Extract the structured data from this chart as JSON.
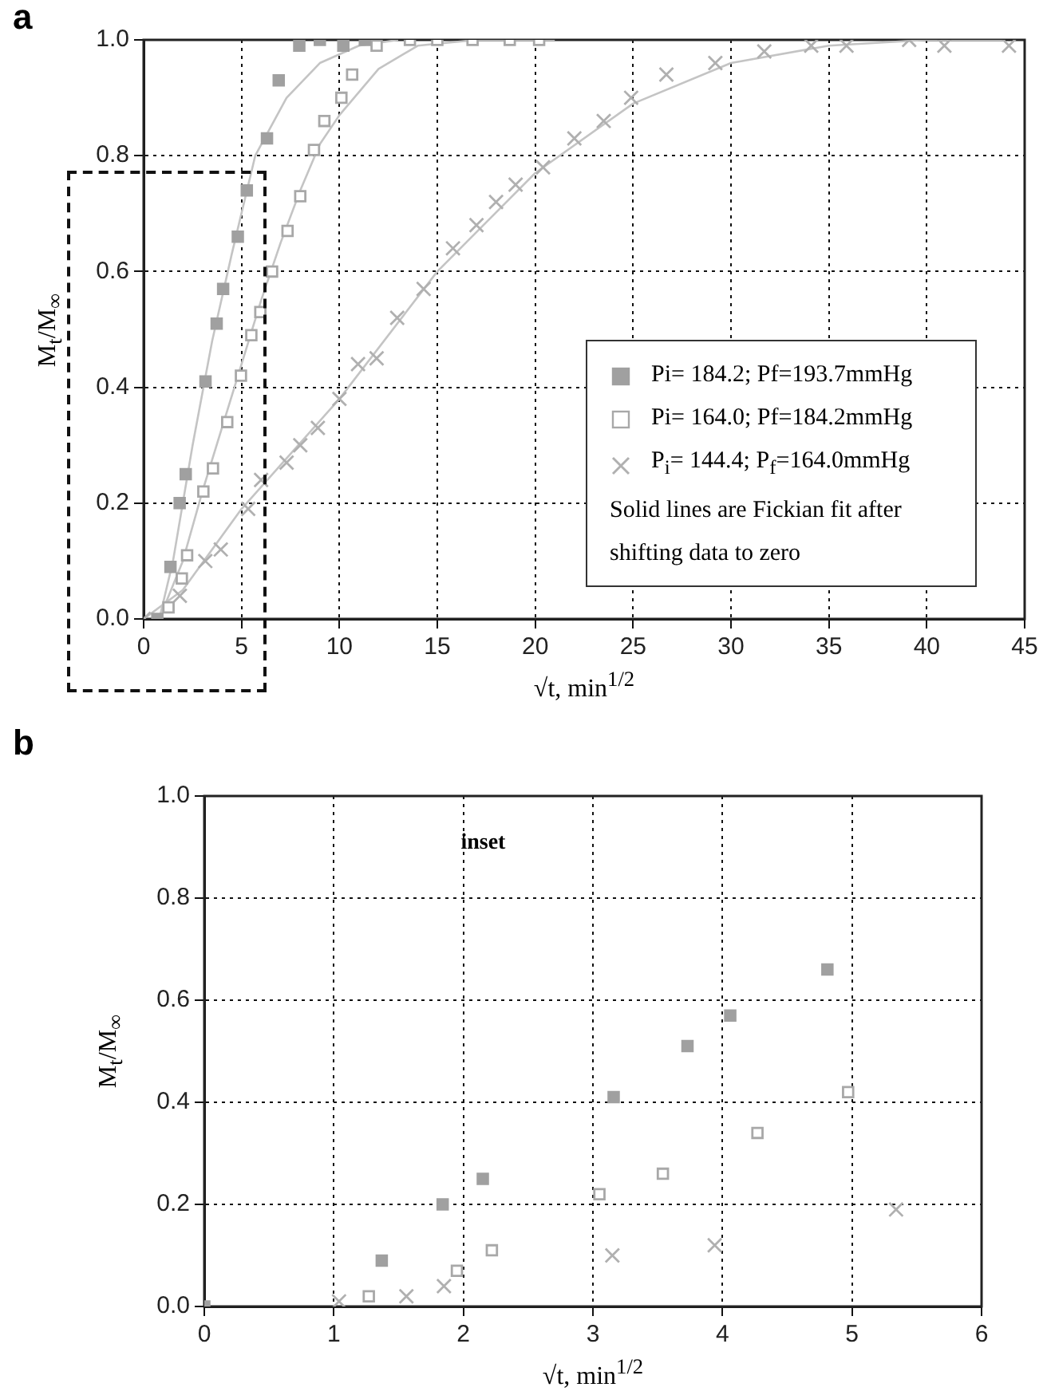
{
  "chart_data": [
    {
      "type": "scatter",
      "title": "a",
      "xlabel": "√t, min$^{1/2}$",
      "ylabel": "M$_{t}$/M$_{∞}$",
      "xlim": [
        0,
        45
      ],
      "xticks": [
        0,
        5,
        10,
        15,
        20,
        25,
        30,
        35,
        40,
        45
      ],
      "ylim": [
        0,
        1
      ],
      "yticks": [
        {
          "value": 0,
          "label": "0.0"
        },
        {
          "value": 0.2,
          "label": "0.2"
        },
        {
          "value": 0.4,
          "label": "0.4"
        },
        {
          "value": 0.6,
          "label": "0.6"
        },
        {
          "value": 0.8,
          "label": "0.8"
        },
        {
          "value": 1,
          "label": "1.0"
        }
      ],
      "grid": true,
      "legend": "bottom right",
      "annotations": [
        "Solid lines are Fickian fit after shifting data to zero"
      ],
      "series": [
        {
          "name": "Pi= 184.2; Pf=193.7mmHg",
          "color": "#a0a0a0",
          "marker": "square",
          "x": [
            0.7,
            1.37,
            1.84,
            2.15,
            3.16,
            3.73,
            4.06,
            4.81,
            5.27,
            6.3,
            6.9,
            7.95,
            9.0,
            10.2,
            11.3
          ],
          "values": [
            0,
            0.09,
            0.2,
            0.25,
            0.41,
            0.51,
            0.57,
            0.66,
            0.74,
            0.83,
            0.93,
            0.99,
            1.0,
            0.99,
            1.0
          ]
        },
        {
          "name": "Pi= 164.0; Pf=184.2mmHg",
          "color": "#a8a8a8",
          "marker": "square",
          "x": [
            1.27,
            1.95,
            2.22,
            3.05,
            3.54,
            4.27,
            4.97,
            5.5,
            5.96,
            6.56,
            7.35,
            8.0,
            8.7,
            9.23,
            10.1,
            10.65,
            11.9,
            13.6,
            15.0,
            16.8,
            18.7,
            20.2
          ],
          "values": [
            0.02,
            0.07,
            0.11,
            0.22,
            0.26,
            0.34,
            0.42,
            0.49,
            0.53,
            0.6,
            0.67,
            0.73,
            0.81,
            0.86,
            0.9,
            0.94,
            0.99,
            1.0,
            1.0,
            1.0,
            1.0,
            1.0
          ]
        },
        {
          "name": "P$_{i}$= 144.4; P$_{f}$=164.0mmHg",
          "color": "#b0b0b0",
          "marker": "cross",
          "x": [
            0,
            1.04,
            1.56,
            1.85,
            3.15,
            3.94,
            5.34,
            6.0,
            7.3,
            8.0,
            8.9,
            10.0,
            10.95,
            11.9,
            12.95,
            14.3,
            15.8,
            17.0,
            18.0,
            19.0,
            20.4,
            22.0,
            23.5,
            24.9,
            26.7,
            29.2,
            31.7,
            34.1,
            35.9,
            39.1,
            40.9,
            44.2
          ],
          "values": [
            0,
            null,
            null,
            0.04,
            0.1,
            0.12,
            0.19,
            0.24,
            0.27,
            0.3,
            0.33,
            0.38,
            0.44,
            0.45,
            0.52,
            0.57,
            0.64,
            0.68,
            0.72,
            0.75,
            0.78,
            0.83,
            0.86,
            0.9,
            0.94,
            0.96,
            0.98,
            0.99,
            0.99,
            1.0,
            0.99,
            0.99
          ]
        },
        {
          "type": "line",
          "color": "#c4c4c4",
          "marker": "none",
          "x": [
            0.8,
            1.5,
            2.5,
            3.5,
            4.5,
            5.7,
            7.3,
            9,
            11,
            13
          ],
          "values": [
            0,
            0.1,
            0.3,
            0.48,
            0.63,
            0.8,
            0.9,
            0.96,
            0.99,
            1.0
          ]
        },
        {
          "type": "line",
          "color": "#c4c4c4",
          "marker": "none",
          "x": [
            0.8,
            2,
            3,
            4,
            5,
            6,
            7,
            8,
            9,
            10,
            12,
            14,
            17,
            21
          ],
          "values": [
            0,
            0.1,
            0.22,
            0.33,
            0.44,
            0.55,
            0.65,
            0.74,
            0.82,
            0.87,
            0.95,
            0.99,
            1.0,
            1.0
          ]
        },
        {
          "type": "line",
          "color": "#c4c4c4",
          "marker": "none",
          "x": [
            0,
            2,
            5,
            10,
            15,
            20,
            25,
            30,
            35,
            40,
            44
          ],
          "values": [
            0,
            0.05,
            0.19,
            0.38,
            0.6,
            0.77,
            0.89,
            0.96,
            0.99,
            1.0,
            1.0
          ]
        }
      ]
    },
    {
      "type": "scatter",
      "title": "b",
      "xlabel": "√t, min$^{1/2}$",
      "ylabel": "M$_{t}$/M$_{∞}$",
      "xlim": [
        0,
        6
      ],
      "xticks": [
        0,
        1,
        2,
        3,
        4,
        5,
        6
      ],
      "ylim": [
        0,
        1
      ],
      "yticks": [
        {
          "value": 0,
          "label": "0.0"
        },
        {
          "value": 0.2,
          "label": "0.2"
        },
        {
          "value": 0.4,
          "label": "0.4"
        },
        {
          "value": 0.6,
          "label": "0.6"
        },
        {
          "value": 0.8,
          "label": "0.8"
        },
        {
          "value": 1,
          "label": "1.0"
        }
      ],
      "grid": true,
      "annotations": [
        "inset"
      ],
      "series": [
        {
          "color": "#a0a0a0",
          "marker": "square",
          "x": [
            0,
            1.37,
            1.84,
            2.15,
            3.16,
            3.73,
            4.06,
            4.81
          ],
          "values": [
            0,
            0.09,
            0.2,
            0.25,
            0.41,
            0.51,
            0.57,
            0.66
          ]
        },
        {
          "color": "#a8a8a8",
          "marker": "square",
          "x": [
            1.27,
            1.95,
            2.22,
            3.05,
            3.54,
            4.27,
            4.97
          ],
          "values": [
            0.02,
            0.07,
            0.11,
            0.22,
            0.26,
            0.34,
            0.42
          ]
        },
        {
          "color": "#b0b0b0",
          "marker": "cross",
          "x": [
            1.04,
            1.56,
            1.85,
            3.15,
            3.94,
            5.34
          ],
          "values": [
            0.01,
            0.02,
            0.04,
            0.1,
            0.12,
            0.19
          ]
        }
      ]
    }
  ]
}
